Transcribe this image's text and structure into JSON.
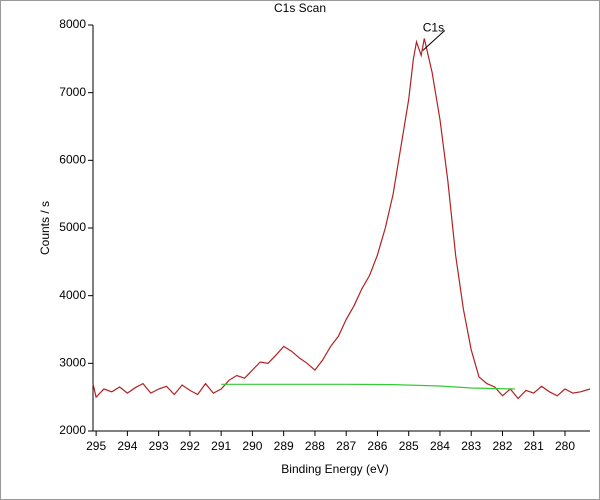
{
  "chart_data": {
    "type": "line",
    "title": "C1s Scan",
    "x_label": "Binding Energy (eV)",
    "y_label": "Counts / s",
    "xlim": [
      295.1,
      279.2
    ],
    "ylim": [
      2000,
      8000
    ],
    "xticks": [
      295,
      294,
      293,
      292,
      291,
      290,
      289,
      288,
      287,
      286,
      285,
      284,
      283,
      282,
      281,
      280
    ],
    "yticks": [
      2000,
      3000,
      4000,
      5000,
      6000,
      7000,
      8000
    ],
    "series": [
      {
        "color": "#b22222",
        "x": [
          295.1,
          295,
          294.75,
          294.5,
          294.25,
          294,
          293.75,
          293.5,
          293.25,
          293,
          292.75,
          292.5,
          292.25,
          292,
          291.75,
          291.5,
          291.25,
          291,
          290.75,
          290.5,
          290.25,
          290,
          289.75,
          289.5,
          289.25,
          289,
          288.75,
          288.5,
          288.25,
          288,
          287.75,
          287.5,
          287.25,
          287,
          286.75,
          286.5,
          286.25,
          286,
          285.75,
          285.5,
          285.25,
          285,
          284.85,
          284.75,
          284.6,
          284.5,
          284.25,
          284,
          283.75,
          283.5,
          283.25,
          283,
          282.75,
          282.5,
          282.25,
          282,
          281.75,
          281.5,
          281.25,
          281,
          280.75,
          280.5,
          280.25,
          280,
          279.75,
          279.5,
          279.2
        ],
        "values": [
          2700,
          2500,
          2620,
          2580,
          2650,
          2560,
          2640,
          2700,
          2560,
          2620,
          2660,
          2540,
          2680,
          2600,
          2540,
          2700,
          2560,
          2620,
          2750,
          2820,
          2780,
          2900,
          3020,
          3000,
          3120,
          3250,
          3180,
          3080,
          3000,
          2900,
          3050,
          3250,
          3400,
          3650,
          3850,
          4100,
          4300,
          4600,
          5000,
          5500,
          6200,
          6900,
          7500,
          7750,
          7550,
          7800,
          7300,
          6600,
          5700,
          4600,
          3800,
          3200,
          2800,
          2700,
          2650,
          2520,
          2620,
          2480,
          2600,
          2560,
          2660,
          2580,
          2520,
          2620,
          2560,
          2580,
          2620
        ]
      },
      {
        "color": "#33cc33",
        "x": [
          291.0,
          289.0,
          287.0,
          285.5,
          284.0,
          283.0,
          281.6
        ],
        "values": [
          2690,
          2690,
          2690,
          2685,
          2665,
          2635,
          2620
        ]
      }
    ],
    "annotations": [
      {
        "text": "C1s",
        "x": 284.55,
        "y": 7800
      }
    ]
  }
}
